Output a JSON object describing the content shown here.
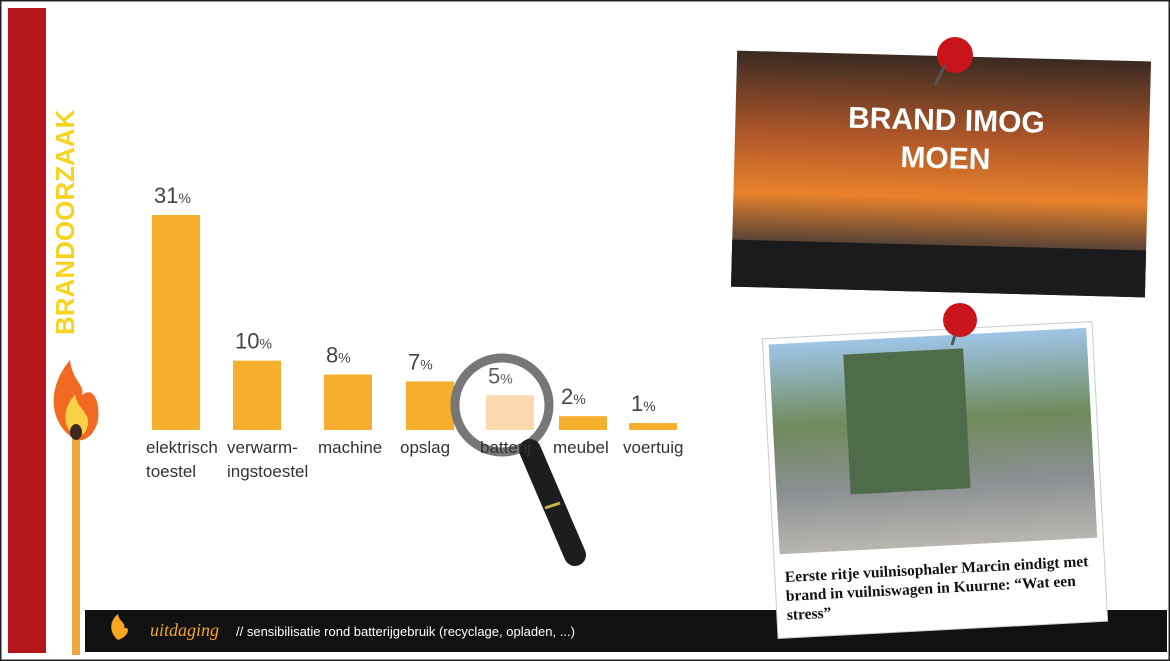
{
  "side_label": "BRANDOORZAAK",
  "chart_data": {
    "type": "bar",
    "categories": [
      "elektrisch\ntoestel",
      "verwarm-\ningstoestel",
      "machine",
      "opslag",
      "batterij",
      "meubel",
      "voertuig"
    ],
    "values": [
      31,
      10,
      8,
      7,
      5,
      2,
      1
    ],
    "value_labels": [
      "31%",
      "10%",
      "8%",
      "7%",
      "5%",
      "2%",
      "1%"
    ],
    "colors": [
      "#f6ae2d",
      "#f6ae2d",
      "#f6ae2d",
      "#f6ae2d",
      "#f9d3a0",
      "#f6ae2d",
      "#f6ae2d"
    ]
  },
  "photo_top": {
    "caption": "BRAND IMOG\nMOEN"
  },
  "photo_bottom": {
    "headline": "Eerste ritje vuilnisophaler Marcin eindigt met brand in vuilniswagen in Kuurne: “Wat een stress”"
  },
  "footer": {
    "brand": "uitdaging",
    "text": "// sensibilisatie rond batterijgebruik (recyclage, opladen, ...)"
  }
}
